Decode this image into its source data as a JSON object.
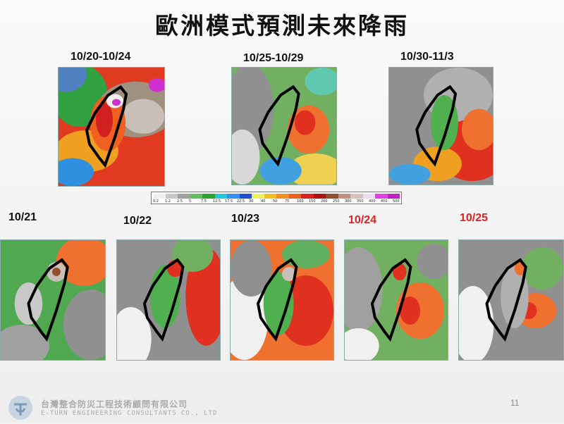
{
  "title": "歐洲模式預測未來降雨",
  "top_panels": [
    {
      "label": "10/20-10/24"
    },
    {
      "label": "10/25-10/29"
    },
    {
      "label": "10/30-11/3"
    }
  ],
  "bottom_panels": [
    {
      "label": "10/21",
      "color": "#111111"
    },
    {
      "label": "10/22",
      "color": "#111111"
    },
    {
      "label": "10/23",
      "color": "#111111"
    },
    {
      "label": "10/24",
      "color": "#e02020"
    },
    {
      "label": "10/25",
      "color": "#e02020"
    }
  ],
  "legend": {
    "ticks": [
      "0.2",
      "1.2",
      "2.5",
      "5",
      "7.5",
      "12.5",
      "17.5",
      "22.5",
      "30",
      "40",
      "50",
      "75",
      "100",
      "150",
      "200",
      "250",
      "300",
      "350",
      "400",
      "450",
      "500"
    ],
    "colors": [
      "#f0f0f0",
      "#c8c8c8",
      "#a0a0a0",
      "#60c060",
      "#30a030",
      "#20c8e0",
      "#3090f0",
      "#2050d0",
      "#f0f060",
      "#f0c020",
      "#f09020",
      "#f06020",
      "#e02020",
      "#b01010",
      "#905030",
      "#c09080",
      "#d8c0c0",
      "#e8e0f0",
      "#e040e0",
      "#c020c0"
    ]
  },
  "footer": {
    "company": "台灣整合防災工程技術顧問有限公司",
    "company_en": "E-TURN ENGINEERING CONSULTANTS CO., LTD",
    "page_number": "11"
  }
}
